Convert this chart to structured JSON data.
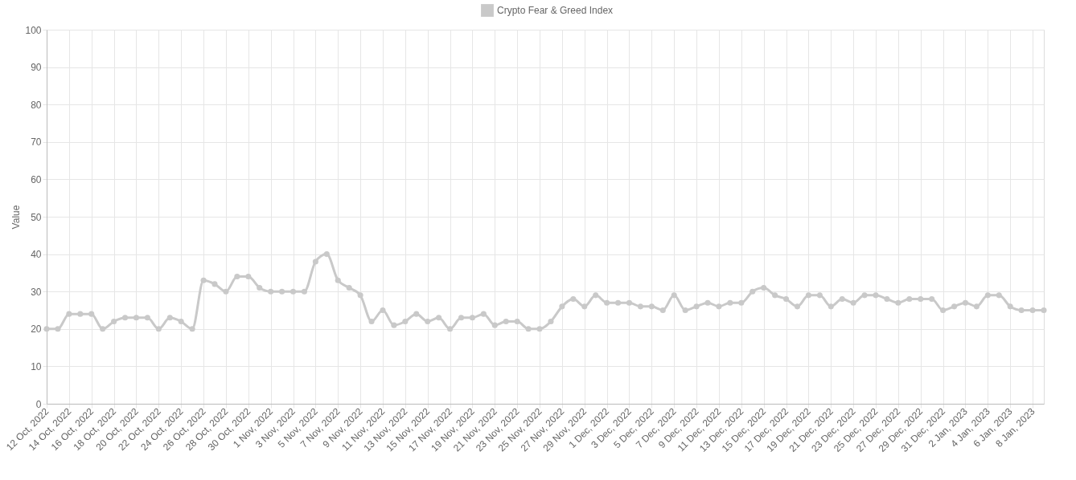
{
  "chart_data": {
    "type": "line",
    "ylabel": "Value",
    "legend": "top",
    "grid": true,
    "marker": "circle",
    "line_style": "solid",
    "x": [
      "2022-10-12",
      "2022-10-13",
      "2022-10-14",
      "2022-10-15",
      "2022-10-16",
      "2022-10-17",
      "2022-10-18",
      "2022-10-19",
      "2022-10-20",
      "2022-10-21",
      "2022-10-22",
      "2022-10-23",
      "2022-10-24",
      "2022-10-25",
      "2022-10-26",
      "2022-10-27",
      "2022-10-28",
      "2022-10-29",
      "2022-10-30",
      "2022-10-31",
      "2022-11-01",
      "2022-11-02",
      "2022-11-03",
      "2022-11-04",
      "2022-11-05",
      "2022-11-06",
      "2022-11-07",
      "2022-11-08",
      "2022-11-09",
      "2022-11-10",
      "2022-11-11",
      "2022-11-12",
      "2022-11-13",
      "2022-11-14",
      "2022-11-15",
      "2022-11-16",
      "2022-11-17",
      "2022-11-18",
      "2022-11-19",
      "2022-11-20",
      "2022-11-21",
      "2022-11-22",
      "2022-11-23",
      "2022-11-24",
      "2022-11-25",
      "2022-11-26",
      "2022-11-27",
      "2022-11-28",
      "2022-11-29",
      "2022-11-30",
      "2022-12-01",
      "2022-12-02",
      "2022-12-03",
      "2022-12-04",
      "2022-12-05",
      "2022-12-06",
      "2022-12-07",
      "2022-12-08",
      "2022-12-09",
      "2022-12-10",
      "2022-12-11",
      "2022-12-12",
      "2022-12-13",
      "2022-12-14",
      "2022-12-15",
      "2022-12-16",
      "2022-12-17",
      "2022-12-18",
      "2022-12-19",
      "2022-12-20",
      "2022-12-21",
      "2022-12-22",
      "2022-12-23",
      "2022-12-24",
      "2022-12-25",
      "2022-12-26",
      "2022-12-27",
      "2022-12-28",
      "2022-12-29",
      "2022-12-30",
      "2022-12-31",
      "2023-01-01",
      "2023-01-02",
      "2023-01-03",
      "2023-01-04",
      "2023-01-05",
      "2023-01-06",
      "2023-01-07",
      "2023-01-08",
      "2023-01-09"
    ],
    "series": [
      {
        "name": "Crypto Fear & Greed Index",
        "color": "#c9c9c9",
        "values": [
          20,
          20,
          24,
          24,
          24,
          20,
          22,
          23,
          23,
          23,
          20,
          23,
          22,
          20,
          33,
          32,
          30,
          34,
          34,
          31,
          30,
          30,
          30,
          30,
          38,
          40,
          33,
          31,
          29,
          22,
          25,
          21,
          22,
          24,
          22,
          23,
          20,
          23,
          23,
          24,
          21,
          22,
          22,
          20,
          20,
          22,
          26,
          28,
          26,
          29,
          27,
          27,
          27,
          26,
          26,
          25,
          29,
          25,
          26,
          27,
          26,
          27,
          27,
          30,
          31,
          29,
          28,
          26,
          29,
          29,
          26,
          28,
          27,
          29,
          29,
          28,
          27,
          28,
          28,
          28,
          25,
          26,
          27,
          26,
          29,
          29,
          26,
          25,
          25,
          25
        ]
      }
    ],
    "xlim": [
      "2022-10-12",
      "2023-01-09"
    ],
    "xticks": [
      {
        "value": "2022-10-12",
        "label": "12 Oct, 2022"
      },
      {
        "value": "2022-10-14",
        "label": "14 Oct, 2022"
      },
      {
        "value": "2022-10-16",
        "label": "16 Oct, 2022"
      },
      {
        "value": "2022-10-18",
        "label": "18 Oct, 2022"
      },
      {
        "value": "2022-10-20",
        "label": "20 Oct, 2022"
      },
      {
        "value": "2022-10-22",
        "label": "22 Oct, 2022"
      },
      {
        "value": "2022-10-24",
        "label": "24 Oct, 2022"
      },
      {
        "value": "2022-10-26",
        "label": "26 Oct, 2022"
      },
      {
        "value": "2022-10-28",
        "label": "28 Oct, 2022"
      },
      {
        "value": "2022-10-30",
        "label": "30 Oct, 2022"
      },
      {
        "value": "2022-11-01",
        "label": "1 Nov, 2022"
      },
      {
        "value": "2022-11-03",
        "label": "3 Nov, 2022"
      },
      {
        "value": "2022-11-05",
        "label": "5 Nov, 2022"
      },
      {
        "value": "2022-11-07",
        "label": "7 Nov, 2022"
      },
      {
        "value": "2022-11-09",
        "label": "9 Nov, 2022"
      },
      {
        "value": "2022-11-11",
        "label": "11 Nov, 2022"
      },
      {
        "value": "2022-11-13",
        "label": "13 Nov, 2022"
      },
      {
        "value": "2022-11-15",
        "label": "15 Nov, 2022"
      },
      {
        "value": "2022-11-17",
        "label": "17 Nov, 2022"
      },
      {
        "value": "2022-11-19",
        "label": "19 Nov, 2022"
      },
      {
        "value": "2022-11-21",
        "label": "21 Nov, 2022"
      },
      {
        "value": "2022-11-23",
        "label": "23 Nov, 2022"
      },
      {
        "value": "2022-11-25",
        "label": "25 Nov, 2022"
      },
      {
        "value": "2022-11-27",
        "label": "27 Nov, 2022"
      },
      {
        "value": "2022-11-29",
        "label": "29 Nov, 2022"
      },
      {
        "value": "2022-12-01",
        "label": "1 Dec, 2022"
      },
      {
        "value": "2022-12-03",
        "label": "3 Dec, 2022"
      },
      {
        "value": "2022-12-05",
        "label": "5 Dec, 2022"
      },
      {
        "value": "2022-12-07",
        "label": "7 Dec, 2022"
      },
      {
        "value": "2022-12-09",
        "label": "9 Dec, 2022"
      },
      {
        "value": "2022-12-11",
        "label": "11 Dec, 2022"
      },
      {
        "value": "2022-12-13",
        "label": "13 Dec, 2022"
      },
      {
        "value": "2022-12-15",
        "label": "15 Dec, 2022"
      },
      {
        "value": "2022-12-17",
        "label": "17 Dec, 2022"
      },
      {
        "value": "2022-12-19",
        "label": "19 Dec, 2022"
      },
      {
        "value": "2022-12-21",
        "label": "21 Dec, 2022"
      },
      {
        "value": "2022-12-23",
        "label": "23 Dec, 2022"
      },
      {
        "value": "2022-12-25",
        "label": "25 Dec, 2022"
      },
      {
        "value": "2022-12-27",
        "label": "27 Dec, 2022"
      },
      {
        "value": "2022-12-29",
        "label": "29 Dec, 2022"
      },
      {
        "value": "2022-12-31",
        "label": "31 Dec, 2022"
      },
      {
        "value": "2023-01-02",
        "label": "2 Jan, 2023"
      },
      {
        "value": "2023-01-04",
        "label": "4 Jan, 2023"
      },
      {
        "value": "2023-01-06",
        "label": "6 Jan, 2023"
      },
      {
        "value": "2023-01-08",
        "label": "8 Jan, 2023"
      }
    ],
    "ylim": [
      0,
      100
    ],
    "yticks": [
      0,
      10,
      20,
      30,
      40,
      50,
      60,
      70,
      80,
      90,
      100
    ]
  }
}
